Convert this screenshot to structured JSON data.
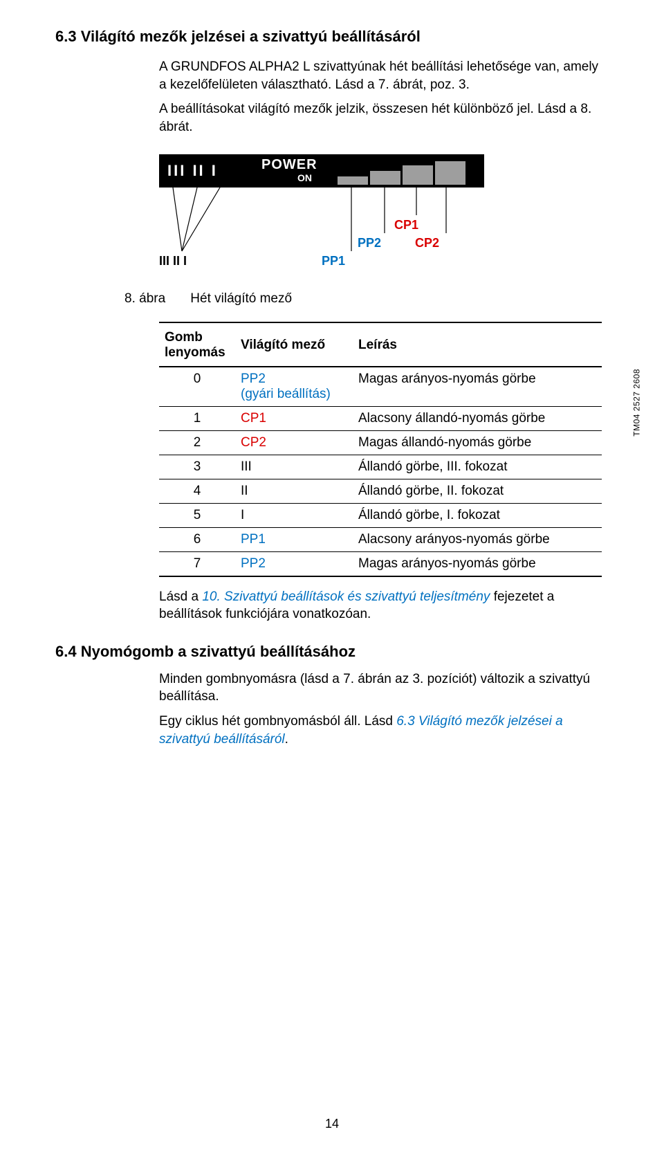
{
  "section1": {
    "heading": "6.3 Világító mezők jelzései a szivattyú beállításáról",
    "para1": "A GRUNDFOS ALPHA2 L szivattyúnak hét beállítási lehetősége van, amely a kezelőfelületen választható. Lásd a 7. ábrát, poz. 3.",
    "para2": "A beállításokat világító mezők jelzik, összesen hét különböző jel. Lásd a 8. ábrát."
  },
  "power_figure": {
    "marks": "III II I",
    "power_label": "POWER",
    "on_label": "ON",
    "bar_color": "#9e9e9e",
    "bg_color": "#000000",
    "leader_labels": {
      "iii": "III II I",
      "pp1": "PP1",
      "pp2": "PP2",
      "cp1": "CP1",
      "cp2": "CP2"
    },
    "colors": {
      "pp": "#0070c0",
      "cp": "#d90000",
      "line": "#000000"
    },
    "side_code": "TM04 2527 2608"
  },
  "fig8": {
    "num": "8. ábra",
    "caption": "Hét világító mező"
  },
  "table": {
    "headers": [
      "Gomb lenyomás",
      "Világító mező",
      "Leírás"
    ],
    "rows": [
      {
        "n": "0",
        "field": "PP2\n(gyári beállítás)",
        "field_color": "c-blue",
        "desc": "Magas arányos-nyomás görbe"
      },
      {
        "n": "1",
        "field": "CP1",
        "field_color": "c-red",
        "desc": "Alacsony állandó-nyomás görbe"
      },
      {
        "n": "2",
        "field": "CP2",
        "field_color": "c-red",
        "desc": "Magas állandó-nyomás görbe"
      },
      {
        "n": "3",
        "field": "III",
        "field_color": "",
        "desc": "Állandó görbe, III. fokozat"
      },
      {
        "n": "4",
        "field": "II",
        "field_color": "",
        "desc": "Állandó görbe, II. fokozat"
      },
      {
        "n": "5",
        "field": "I",
        "field_color": "",
        "desc": "Állandó görbe, I. fokozat"
      },
      {
        "n": "6",
        "field": "PP1",
        "field_color": "c-blue",
        "desc": "Alacsony arányos-nyomás görbe"
      },
      {
        "n": "7",
        "field": "PP2",
        "field_color": "c-blue",
        "desc": "Magas arányos-nyomás görbe"
      }
    ]
  },
  "after_table": {
    "pre": "Lásd a ",
    "link": "10. Szivattyú beállítások és szivattyú teljesítmény",
    "post": " fejezetet a beállítások funkciójára vonatkozóan."
  },
  "section2": {
    "heading": "6.4 Nyomógomb a szivattyú beállításához",
    "para1": "Minden gombnyomásra (lásd a 7. ábrán az 3. pozíciót) változik a szivattyú beállítása.",
    "para2_pre": "Egy ciklus hét gombnyomásból áll. Lásd ",
    "para2_link": "6.3 Világító mezők jelzései a szivattyú beállításáról",
    "para2_post": "."
  },
  "page_number": "14"
}
